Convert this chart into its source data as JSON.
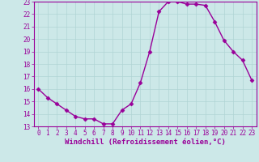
{
  "x": [
    0,
    1,
    2,
    3,
    4,
    5,
    6,
    7,
    8,
    9,
    10,
    11,
    12,
    13,
    14,
    15,
    16,
    17,
    18,
    19,
    20,
    21,
    22,
    23
  ],
  "y": [
    16.0,
    15.3,
    14.8,
    14.3,
    13.8,
    13.6,
    13.6,
    13.2,
    13.2,
    14.3,
    14.8,
    16.5,
    19.0,
    22.2,
    23.0,
    23.0,
    22.8,
    22.8,
    22.7,
    21.4,
    19.9,
    19.0,
    18.3,
    16.7
  ],
  "line_color": "#990099",
  "marker": "D",
  "marker_size": 2.5,
  "bg_color": "#cce8e8",
  "grid_color": "#b0d4d4",
  "xlabel": "Windchill (Refroidissement éolien,°C)",
  "xlabel_color": "#990099",
  "tick_color": "#990099",
  "spine_color": "#990099",
  "ylim": [
    13,
    23
  ],
  "xlim": [
    -0.5,
    23.5
  ],
  "yticks": [
    13,
    14,
    15,
    16,
    17,
    18,
    19,
    20,
    21,
    22,
    23
  ],
  "xticks": [
    0,
    1,
    2,
    3,
    4,
    5,
    6,
    7,
    8,
    9,
    10,
    11,
    12,
    13,
    14,
    15,
    16,
    17,
    18,
    19,
    20,
    21,
    22,
    23
  ],
  "tick_fontsize": 5.5,
  "xlabel_fontsize": 6.5,
  "linewidth": 1.0
}
